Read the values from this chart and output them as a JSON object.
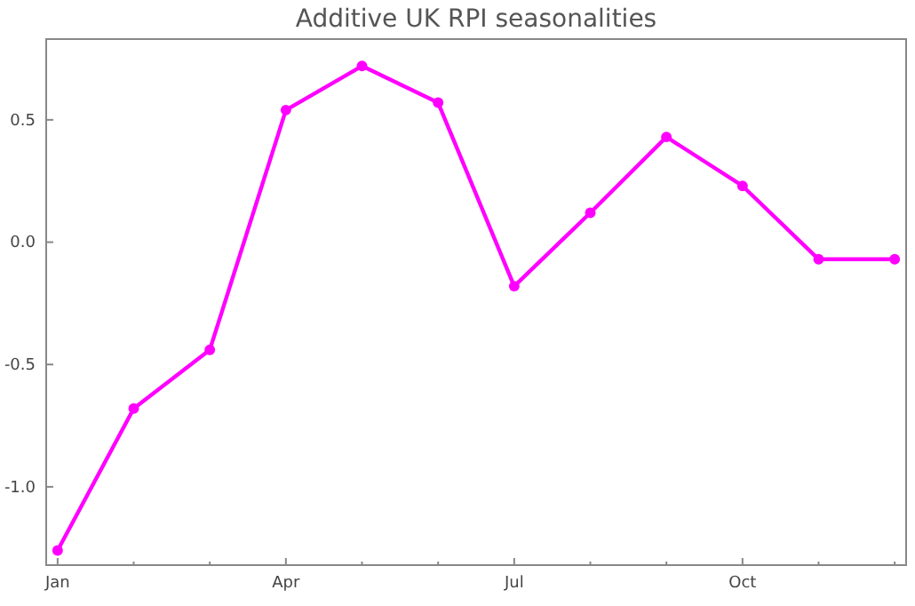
{
  "chart_data": {
    "type": "line",
    "title": "Additive UK RPI seasonalities",
    "categories": [
      "Jan",
      null,
      null,
      "Apr",
      null,
      null,
      "Jul",
      null,
      null,
      "Oct",
      null,
      null
    ],
    "series": [
      {
        "color": "#ff00ff",
        "values": [
          -1.26,
          -0.68,
          -0.44,
          0.54,
          0.72,
          0.57,
          -0.18,
          0.12,
          0.43,
          0.23,
          -0.07,
          -0.07
        ]
      }
    ],
    "ylim": [
      -1.32,
      0.83
    ],
    "yticks": [
      {
        "value": -1,
        "label": "-1.0"
      },
      {
        "value": -0.5,
        "label": "-0.5"
      },
      {
        "value": 0,
        "label": "0.0"
      },
      {
        "value": 0.5,
        "label": "0.5"
      }
    ],
    "grid": false,
    "marker": "circle",
    "line_style": "solid"
  }
}
